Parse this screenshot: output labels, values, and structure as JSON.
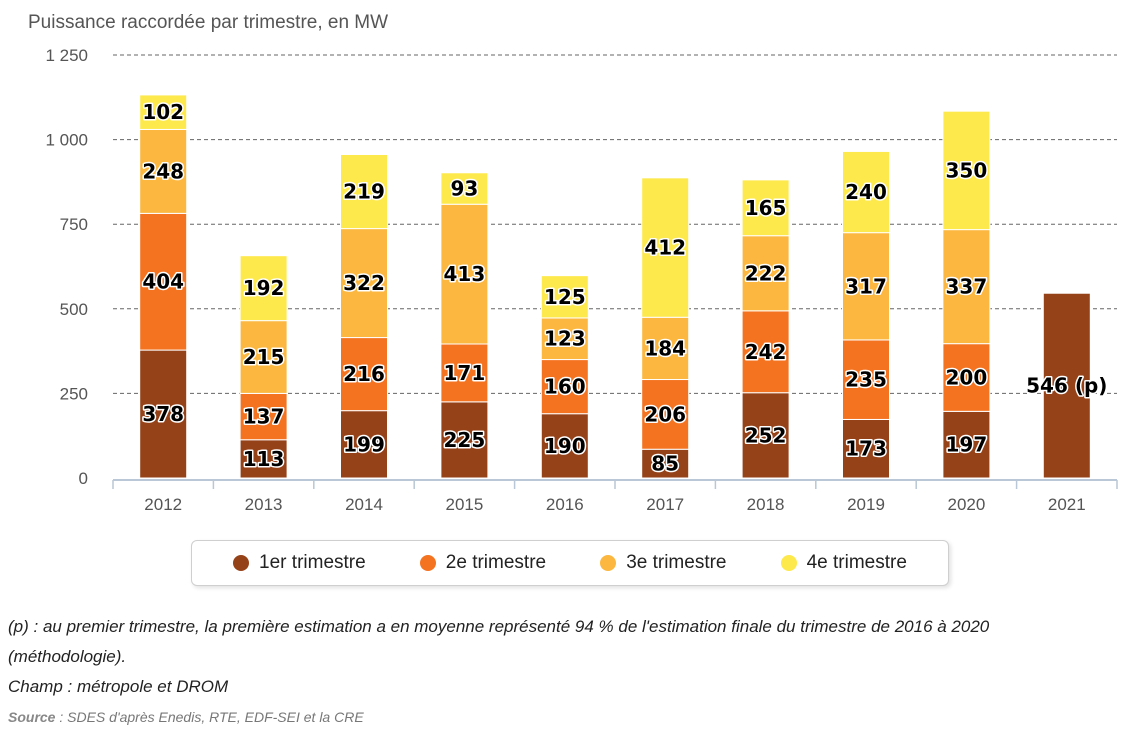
{
  "title": "Puissance raccordée par trimestre, en MW",
  "chart_data": {
    "type": "bar",
    "stacked": true,
    "categories": [
      "2012",
      "2013",
      "2014",
      "2015",
      "2016",
      "2017",
      "2018",
      "2019",
      "2020",
      "2021"
    ],
    "series": [
      {
        "name": "1er trimestre",
        "color": "#964219",
        "values": [
          378,
          113,
          199,
          225,
          190,
          85,
          252,
          173,
          197,
          546
        ]
      },
      {
        "name": "2e trimestre",
        "color": "#f47320",
        "values": [
          404,
          137,
          216,
          171,
          160,
          206,
          242,
          235,
          200,
          null
        ]
      },
      {
        "name": "3e trimestre",
        "color": "#fbb73f",
        "values": [
          248,
          215,
          322,
          413,
          123,
          184,
          222,
          317,
          337,
          null
        ]
      },
      {
        "name": "4e trimestre",
        "color": "#fde94c",
        "values": [
          102,
          192,
          219,
          93,
          125,
          412,
          165,
          240,
          350,
          null
        ]
      }
    ],
    "special_labels": {
      "2021": "546 (p)"
    },
    "ylim": [
      0,
      1250
    ],
    "yticks": [
      0,
      250,
      500,
      750,
      1000,
      1250
    ],
    "ytick_labels": [
      "0",
      "250",
      "500",
      "750",
      "1 000",
      "1 250"
    ],
    "grid": true,
    "legend_position": "bottom"
  },
  "notes": [
    "(p) : au premier trimestre, la première estimation a en moyenne représenté 94 % de l'estimation finale du trimestre de 2016 à 2020",
    "(méthodologie).",
    "Champ : métropole et DROM"
  ],
  "source": {
    "label": "Source",
    "text": " : SDES d'après Enedis, RTE, EDF-SEI et la CRE"
  }
}
